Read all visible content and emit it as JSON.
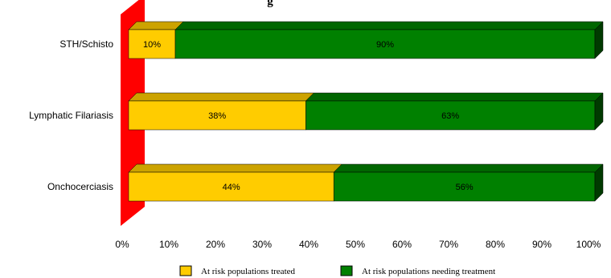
{
  "chart_data": {
    "type": "bar",
    "orientation": "horizontal",
    "stacked": true,
    "title_fragment": "g",
    "categories": [
      "STH/Schisto",
      "Lymphatic Filariasis",
      "Onchocerciasis"
    ],
    "series": [
      {
        "name": "At risk populations treated",
        "color": "#FFCC00",
        "values": [
          10,
          38,
          44
        ],
        "labels": [
          "10%",
          "38%",
          "44%"
        ]
      },
      {
        "name": "At risk populations needing treatment",
        "color": "#008000",
        "values": [
          90,
          63,
          56
        ],
        "labels": [
          "90%",
          "63%",
          "56%"
        ]
      }
    ],
    "xlim": [
      0,
      100
    ],
    "x_ticks": [
      "0%",
      "10%",
      "20%",
      "30%",
      "40%",
      "50%",
      "60%",
      "70%",
      "80%",
      "90%",
      "100%"
    ],
    "grid": false,
    "legend_position": "bottom",
    "wall_color": "#FF0000"
  }
}
